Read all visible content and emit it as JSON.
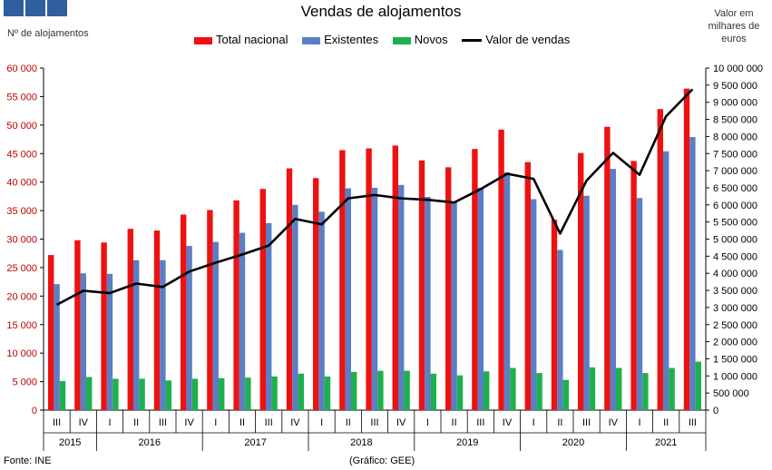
{
  "header": {
    "title": "Vendas de alojamentos",
    "left_axis_label": "Nº de alojamentos",
    "right_axis_label": "Valor em milhares de euros"
  },
  "legend": {
    "total": "Total nacional",
    "existentes": "Existentes",
    "novos": "Novos",
    "valor": "Valor de vendas"
  },
  "footer": {
    "source": "Fonte: INE",
    "credit": "(Gráfico: GEE)"
  },
  "colors": {
    "total": "#ee1111",
    "existentes": "#5b7fc4",
    "novos": "#1eb04c",
    "valor": "#000000",
    "left_axis_text": "#c00000",
    "logo": "#2f5f9e"
  },
  "chart_data": {
    "type": "bar",
    "title": "Vendas de alojamentos",
    "ylabel": "Nº de alojamentos",
    "y2label": "Valor em milhares de euros",
    "ylim": [
      0,
      60000
    ],
    "y2lim": [
      0,
      10000000
    ],
    "y_ticks": [
      "0",
      "5 000",
      "10 000",
      "15 000",
      "20 000",
      "25 000",
      "30 000",
      "35 000",
      "40 000",
      "45 000",
      "50 000",
      "55 000",
      "60 000"
    ],
    "y2_ticks": [
      "0",
      "500 000",
      "1 000 000",
      "1 500 000",
      "2 000 000",
      "2 500 000",
      "3 000 000",
      "3 500 000",
      "4 000 000",
      "4 500 000",
      "5 000 000",
      "5 500 000",
      "6 000 000",
      "6 500 000",
      "7 000 000",
      "7 500 000",
      "8 000 000",
      "8 500 000",
      "9 000 000",
      "9 500 000",
      "10 000 000"
    ],
    "categories": [
      "III",
      "IV",
      "I",
      "II",
      "III",
      "IV",
      "I",
      "II",
      "III",
      "IV",
      "I",
      "II",
      "III",
      "IV",
      "I",
      "II",
      "III",
      "IV",
      "I",
      "II",
      "III",
      "IV",
      "I",
      "II",
      "III"
    ],
    "years": [
      {
        "label": "2015",
        "count": 2
      },
      {
        "label": "2016",
        "count": 4
      },
      {
        "label": "2017",
        "count": 4
      },
      {
        "label": "2018",
        "count": 4
      },
      {
        "label": "2019",
        "count": 4
      },
      {
        "label": "2020",
        "count": 4
      },
      {
        "label": "2021",
        "count": 3
      }
    ],
    "series": [
      {
        "name": "Total nacional",
        "axis": "left",
        "values": [
          27200,
          29800,
          29400,
          31800,
          31500,
          34300,
          35100,
          36800,
          38800,
          42400,
          40700,
          45600,
          45900,
          46400,
          43800,
          42600,
          45800,
          49200,
          43500,
          33400,
          45100,
          49700,
          43700,
          52800,
          56400
        ]
      },
      {
        "name": "Existentes",
        "axis": "left",
        "values": [
          22100,
          24000,
          23900,
          26300,
          26300,
          28800,
          29500,
          31100,
          32800,
          36000,
          34800,
          38900,
          39000,
          39500,
          37400,
          36500,
          39000,
          41700,
          37000,
          28100,
          37600,
          42300,
          37200,
          45400,
          47900
        ]
      },
      {
        "name": "Novos",
        "axis": "left",
        "values": [
          5100,
          5800,
          5500,
          5500,
          5200,
          5500,
          5600,
          5700,
          5900,
          6400,
          5900,
          6700,
          6900,
          6900,
          6400,
          6100,
          6800,
          7400,
          6500,
          5300,
          7500,
          7400,
          6500,
          7400,
          8500
        ]
      },
      {
        "name": "Valor de vendas",
        "axis": "right",
        "type": "line",
        "values": [
          3080000,
          3490000,
          3420000,
          3700000,
          3600000,
          4050000,
          4310000,
          4550000,
          4810000,
          5590000,
          5430000,
          6190000,
          6290000,
          6190000,
          6150000,
          6070000,
          6460000,
          6910000,
          6760000,
          5160000,
          6710000,
          7520000,
          6880000,
          8590000,
          9380000
        ]
      }
    ]
  }
}
